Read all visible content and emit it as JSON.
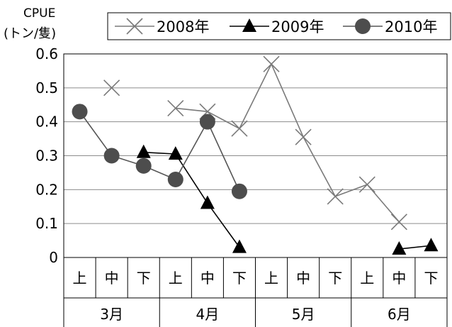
{
  "chart_data": {
    "type": "line",
    "ylabel": [
      "CPUE",
      "(トン/隻)"
    ],
    "ylim": [
      0,
      0.6
    ],
    "yticks": [
      "0",
      "0.1",
      "0.2",
      "0.3",
      "0.4",
      "0.5",
      "0.6"
    ],
    "grid": "horizontal",
    "legend_position": "top",
    "categories": [
      "上",
      "中",
      "下",
      "上",
      "中",
      "下",
      "上",
      "中",
      "下",
      "上",
      "中",
      "下"
    ],
    "months": [
      "3月",
      "4月",
      "5月",
      "6月"
    ],
    "series": [
      {
        "name": "2008年",
        "marker": "x",
        "color": "#7a7a7a",
        "values": [
          null,
          0.5,
          null,
          0.44,
          0.43,
          0.38,
          0.57,
          0.355,
          0.18,
          0.215,
          0.105,
          null
        ]
      },
      {
        "name": "2009年",
        "marker": "triangle",
        "color": "#000000",
        "values": [
          null,
          null,
          0.31,
          0.305,
          0.16,
          0.03,
          null,
          null,
          null,
          null,
          0.025,
          0.035
        ]
      },
      {
        "name": "2010年",
        "marker": "circle",
        "color": "#555555",
        "markerColor": "#4d4d4d",
        "values": [
          0.43,
          0.3,
          0.27,
          0.23,
          0.4,
          0.195,
          null,
          null,
          null,
          null,
          null,
          null
        ]
      }
    ]
  }
}
